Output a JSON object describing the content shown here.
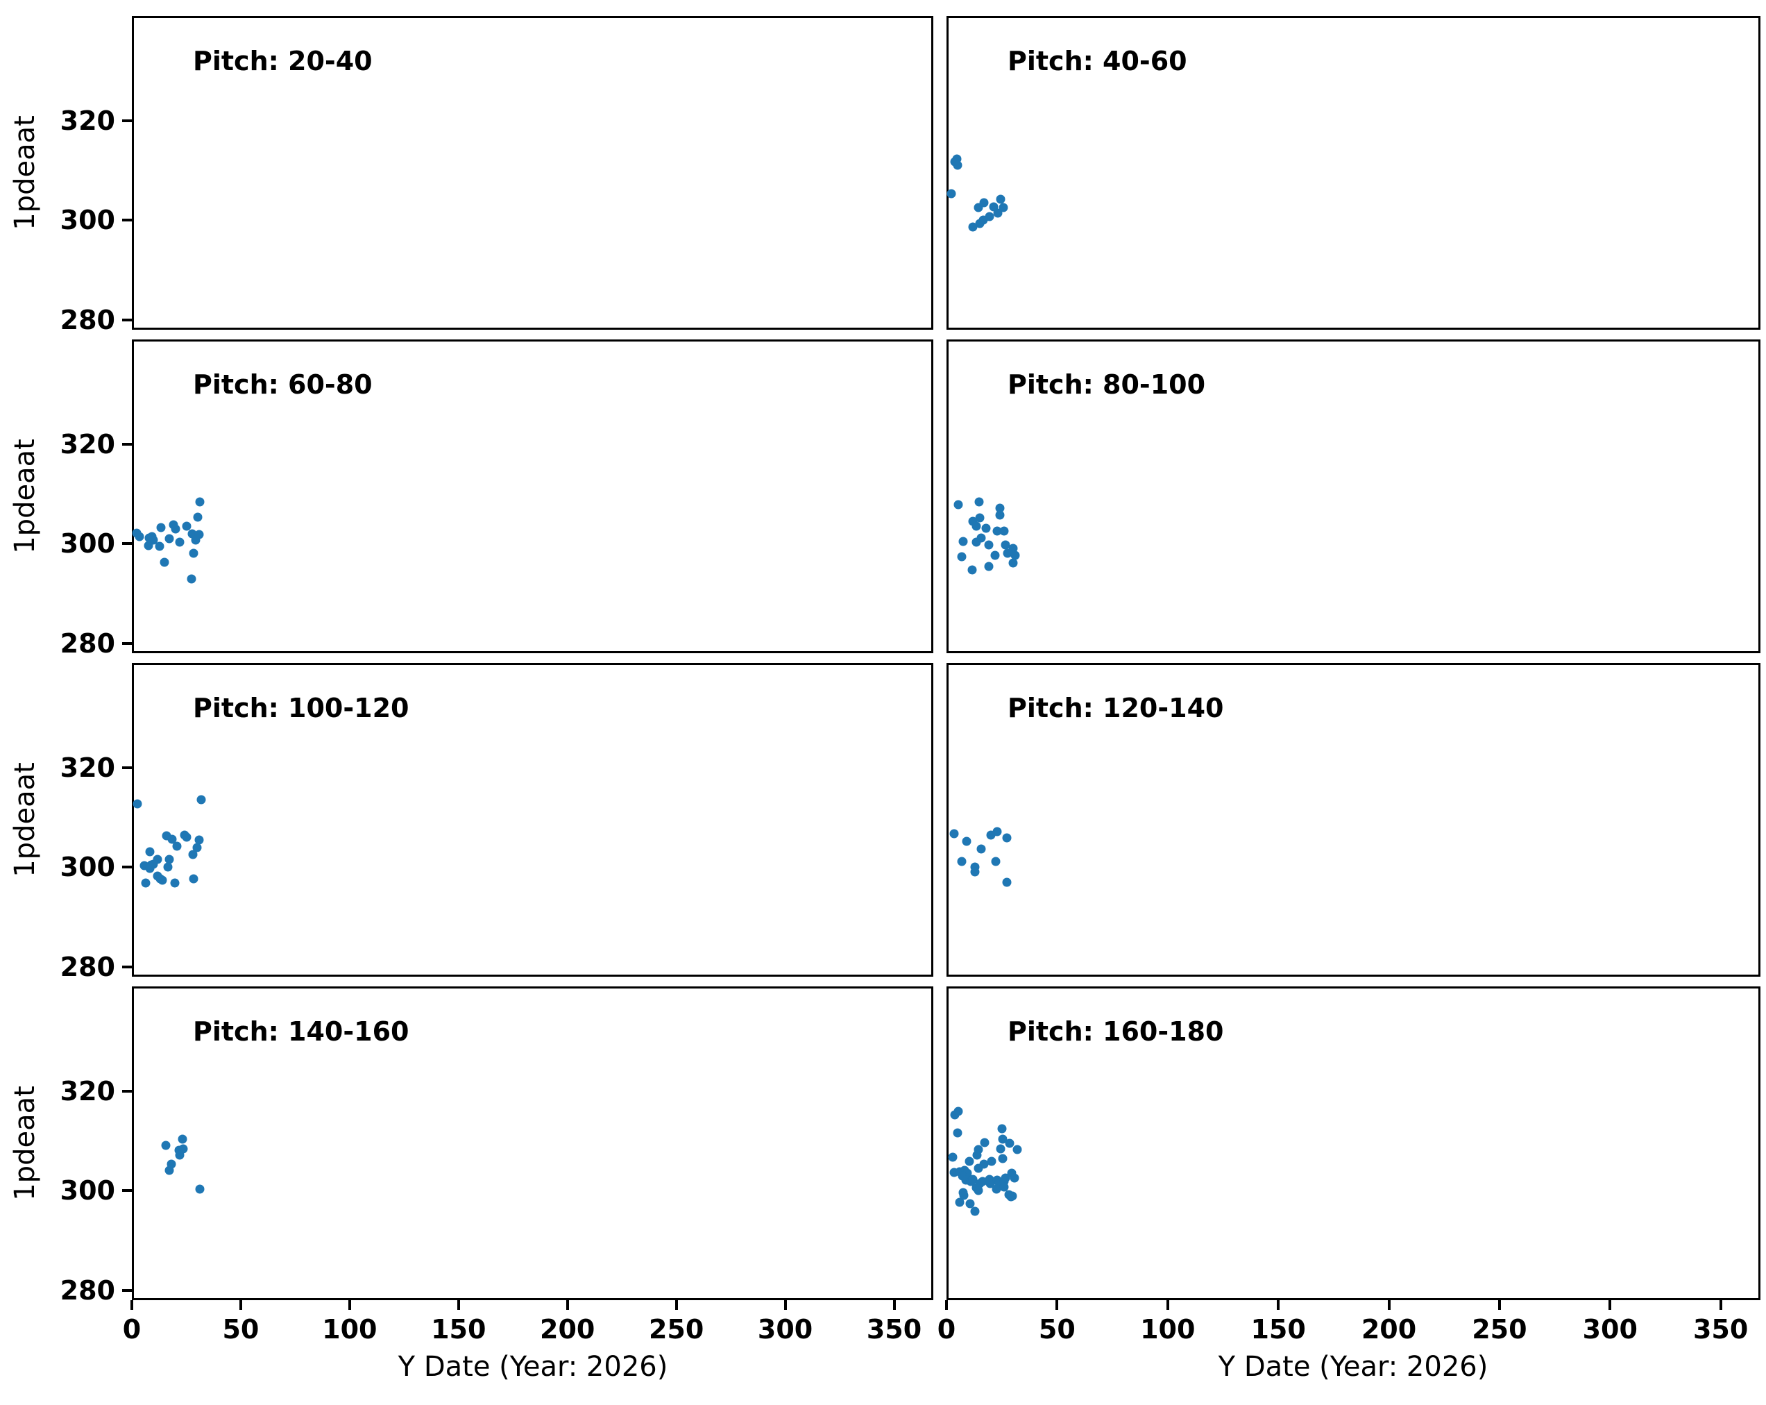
{
  "chart_data": {
    "type": "scatter",
    "xlabel": "Y Date (Year: 2026)",
    "ylabel": "1pdeaat",
    "xlim": [
      0,
      368
    ],
    "ylim": [
      278,
      341
    ],
    "xticks": [
      0,
      50,
      100,
      150,
      200,
      250,
      300,
      350
    ],
    "yticks": [
      280,
      300,
      320
    ],
    "grid": false,
    "marker_color": "#1f77b4",
    "text_color": "#000000",
    "background_color": "#ffffff",
    "layout_note": "4x2 grid of subplots, shared axes; y tick labels only on left column, x tick labels only on bottom row",
    "panels": [
      {
        "title": "Pitch: 20-40",
        "points": []
      },
      {
        "title": "Pitch: 40-60",
        "points": [
          [
            3.8,
            312.7
          ],
          [
            2.9,
            312.1
          ],
          [
            4.2,
            311.4
          ],
          [
            1.3,
            305.7
          ],
          [
            13.4,
            302.9
          ],
          [
            16.0,
            303.9
          ],
          [
            23.6,
            304.6
          ],
          [
            20.4,
            303.1
          ],
          [
            24.9,
            303.0
          ],
          [
            22.4,
            301.8
          ],
          [
            18.5,
            301.2
          ],
          [
            15.7,
            300.4
          ],
          [
            14.1,
            299.7
          ],
          [
            10.9,
            299.0
          ]
        ]
      },
      {
        "title": "Pitch: 60-80",
        "points": [
          [
            30.4,
            308.8
          ],
          [
            29.4,
            305.7
          ],
          [
            12.5,
            303.7
          ],
          [
            18.2,
            304.2
          ],
          [
            19.2,
            303.4
          ],
          [
            24.3,
            303.9
          ],
          [
            1.3,
            302.6
          ],
          [
            2.6,
            301.9
          ],
          [
            26.8,
            302.4
          ],
          [
            30.0,
            302.2
          ],
          [
            7.0,
            301.5
          ],
          [
            8.3,
            301.8
          ],
          [
            8.9,
            301.2
          ],
          [
            16.3,
            301.4
          ],
          [
            28.4,
            301.2
          ],
          [
            6.7,
            300.0
          ],
          [
            11.8,
            299.9
          ],
          [
            21.1,
            300.7
          ],
          [
            27.5,
            298.5
          ],
          [
            14.1,
            296.7
          ],
          [
            26.5,
            293.3
          ]
        ]
      },
      {
        "title": "Pitch: 80-100",
        "points": [
          [
            4.5,
            308.2
          ],
          [
            13.7,
            308.8
          ],
          [
            23.3,
            307.6
          ],
          [
            23.3,
            306.1
          ],
          [
            10.9,
            304.9
          ],
          [
            14.1,
            305.6
          ],
          [
            12.5,
            303.9
          ],
          [
            16.9,
            303.5
          ],
          [
            22.0,
            302.9
          ],
          [
            25.2,
            302.9
          ],
          [
            6.7,
            300.8
          ],
          [
            12.5,
            300.7
          ],
          [
            14.7,
            301.6
          ],
          [
            18.2,
            300.1
          ],
          [
            25.6,
            300.1
          ],
          [
            29.1,
            299.5
          ],
          [
            5.8,
            297.8
          ],
          [
            21.1,
            298.1
          ],
          [
            26.8,
            298.5
          ],
          [
            30.0,
            298.1
          ],
          [
            29.1,
            296.6
          ],
          [
            18.2,
            295.9
          ],
          [
            10.5,
            295.1
          ]
        ]
      },
      {
        "title": "Pitch: 100-120",
        "points": [
          [
            1.6,
            313.1
          ],
          [
            31.0,
            314.0
          ],
          [
            15.0,
            306.7
          ],
          [
            17.6,
            306.0
          ],
          [
            23.3,
            306.9
          ],
          [
            24.3,
            306.4
          ],
          [
            30.0,
            305.9
          ],
          [
            19.8,
            304.6
          ],
          [
            29.1,
            304.4
          ],
          [
            7.3,
            303.5
          ],
          [
            27.2,
            303.0
          ],
          [
            10.9,
            302.0
          ],
          [
            16.3,
            302.0
          ],
          [
            4.8,
            300.7
          ],
          [
            8.0,
            300.8
          ],
          [
            8.9,
            301.0
          ],
          [
            7.3,
            300.1
          ],
          [
            15.7,
            300.5
          ],
          [
            10.9,
            298.6
          ],
          [
            12.1,
            298.1
          ],
          [
            13.1,
            297.8
          ],
          [
            5.4,
            297.3
          ],
          [
            18.8,
            297.3
          ],
          [
            27.5,
            298.1
          ]
        ]
      },
      {
        "title": "Pitch: 120-140",
        "points": [
          [
            2.6,
            307.2
          ],
          [
            8.0,
            305.6
          ],
          [
            19.2,
            306.9
          ],
          [
            22.0,
            307.5
          ],
          [
            26.2,
            306.3
          ],
          [
            14.7,
            304.1
          ],
          [
            6.1,
            301.6
          ],
          [
            21.4,
            301.6
          ],
          [
            11.8,
            300.5
          ],
          [
            11.8,
            299.5
          ],
          [
            26.2,
            297.4
          ]
        ]
      },
      {
        "title": "Pitch: 140-160",
        "points": [
          [
            14.7,
            309.5
          ],
          [
            22.4,
            310.7
          ],
          [
            20.8,
            308.6
          ],
          [
            22.7,
            308.8
          ],
          [
            21.1,
            307.5
          ],
          [
            17.3,
            305.7
          ],
          [
            16.3,
            304.5
          ],
          [
            30.4,
            300.7
          ]
        ]
      },
      {
        "title": "Pitch: 160-180",
        "points": [
          [
            2.9,
            315.6
          ],
          [
            4.5,
            316.3
          ],
          [
            4.2,
            312.0
          ],
          [
            24.0,
            312.8
          ],
          [
            16.3,
            310.1
          ],
          [
            24.3,
            310.7
          ],
          [
            27.5,
            309.9
          ],
          [
            13.4,
            308.7
          ],
          [
            23.6,
            308.8
          ],
          [
            31.0,
            308.7
          ],
          [
            12.8,
            307.5
          ],
          [
            1.9,
            307.1
          ],
          [
            9.3,
            306.3
          ],
          [
            24.3,
            306.8
          ],
          [
            16.0,
            305.7
          ],
          [
            19.5,
            306.3
          ],
          [
            13.4,
            304.9
          ],
          [
            2.6,
            304.1
          ],
          [
            5.1,
            304.2
          ],
          [
            7.3,
            304.5
          ],
          [
            8.3,
            303.9
          ],
          [
            6.4,
            303.4
          ],
          [
            28.4,
            303.9
          ],
          [
            29.7,
            303.0
          ],
          [
            7.7,
            302.6
          ],
          [
            9.9,
            302.3
          ],
          [
            10.9,
            302.7
          ],
          [
            14.1,
            301.9
          ],
          [
            15.3,
            302.2
          ],
          [
            18.5,
            302.7
          ],
          [
            19.5,
            302.3
          ],
          [
            18.9,
            301.9
          ],
          [
            22.0,
            302.6
          ],
          [
            23.0,
            302.0
          ],
          [
            25.2,
            302.3
          ],
          [
            25.6,
            302.9
          ],
          [
            12.5,
            301.0
          ],
          [
            13.4,
            300.5
          ],
          [
            21.7,
            300.7
          ],
          [
            25.2,
            301.2
          ],
          [
            6.7,
            300.0
          ],
          [
            7.0,
            299.5
          ],
          [
            27.2,
            299.6
          ],
          [
            28.1,
            299.2
          ],
          [
            28.8,
            299.3
          ],
          [
            5.1,
            298.1
          ],
          [
            9.6,
            297.8
          ],
          [
            11.8,
            296.2
          ]
        ]
      }
    ]
  }
}
